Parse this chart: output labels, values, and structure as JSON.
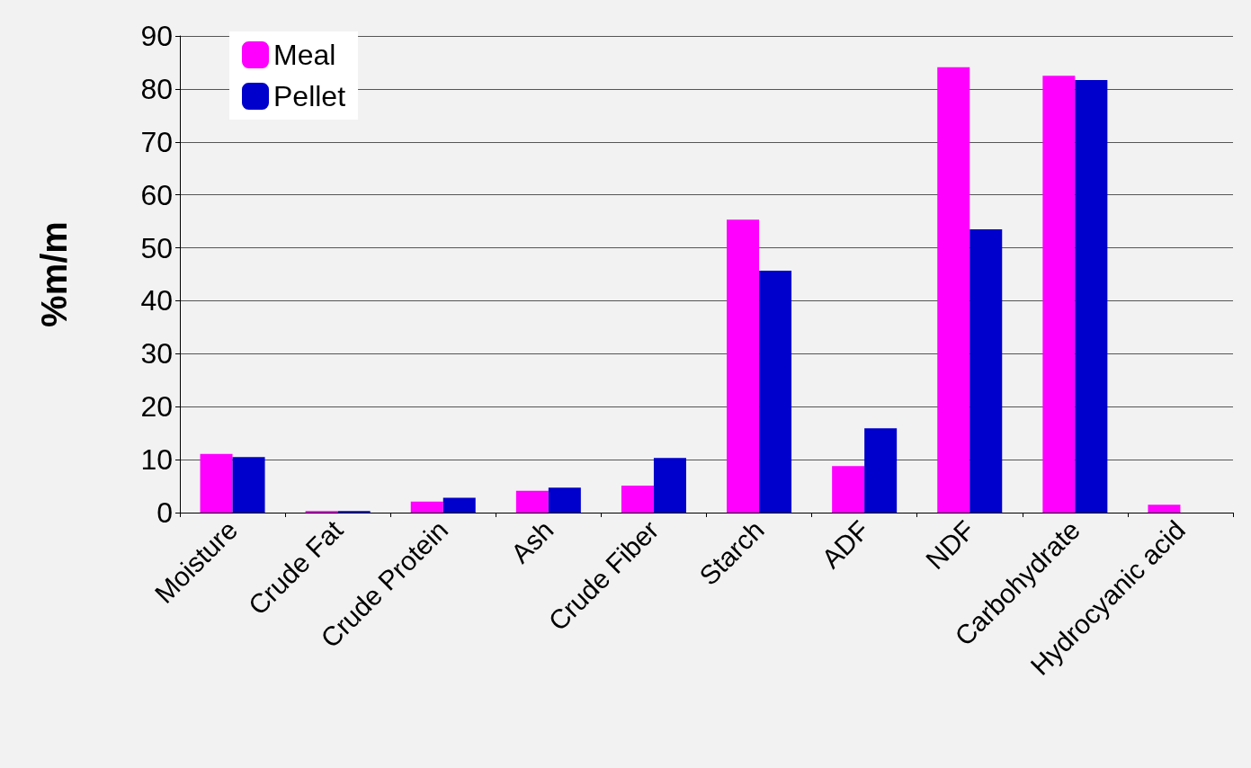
{
  "chart_data": {
    "type": "bar",
    "ylabel": "%m/m",
    "categories": [
      "Moisture",
      "Crude Fat",
      "Crude Protein",
      "Ash",
      "Crude Fiber",
      "Starch",
      "ADF",
      "NDF",
      "Carbohydrate",
      "Hydrocyanic acid"
    ],
    "series": [
      {
        "name": "Meal",
        "color": "#ff00ff",
        "values": [
          11.1,
          0.3,
          2.1,
          4.1,
          5.1,
          55.3,
          8.8,
          84.1,
          82.5,
          1.5
        ]
      },
      {
        "name": "Pellet",
        "color": "#0000cc",
        "values": [
          10.5,
          0.3,
          2.8,
          4.7,
          10.3,
          45.7,
          15.9,
          53.5,
          81.7,
          0
        ]
      }
    ],
    "ylim": [
      0,
      90
    ],
    "yticks": [
      0,
      10,
      20,
      30,
      40,
      50,
      60,
      70,
      80,
      90
    ],
    "grid": "y",
    "legend": "top left"
  }
}
